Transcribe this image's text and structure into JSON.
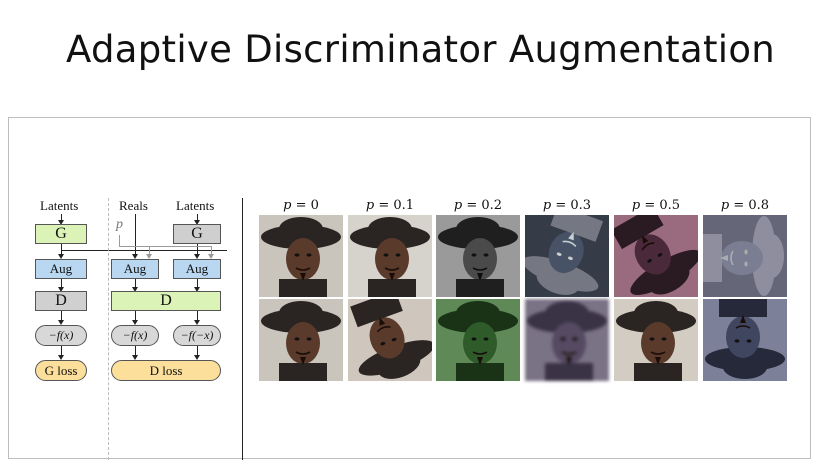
{
  "slide": {
    "title": "Adaptive Discriminator Augmentation"
  },
  "diagram": {
    "latents_left": "Latents",
    "reals": "Reals",
    "latents_right": "Latents",
    "p_symbol": "p",
    "g_left": "G",
    "g_right": "G",
    "aug_left": "Aug",
    "aug_mid": "Aug",
    "aug_right": "Aug",
    "d_left": "D",
    "d_wide": "D",
    "f_left": "−f(x)",
    "f_mid": "−f(x)",
    "f_right": "−f(−x)",
    "g_loss": "G loss",
    "d_loss": "D loss"
  },
  "probability_columns": [
    {
      "var": "p",
      "value": "0"
    },
    {
      "var": "p",
      "value": "0.1"
    },
    {
      "var": "p",
      "value": "0.2"
    },
    {
      "var": "p",
      "value": "0.3"
    },
    {
      "var": "p",
      "value": "0.5"
    },
    {
      "var": "p",
      "value": "0.8"
    }
  ],
  "colors": {
    "generator": "#dcf3b8",
    "augment": "#b9d7f1",
    "discriminator": "#d0d0d0",
    "loss": "#fbdf9a"
  }
}
